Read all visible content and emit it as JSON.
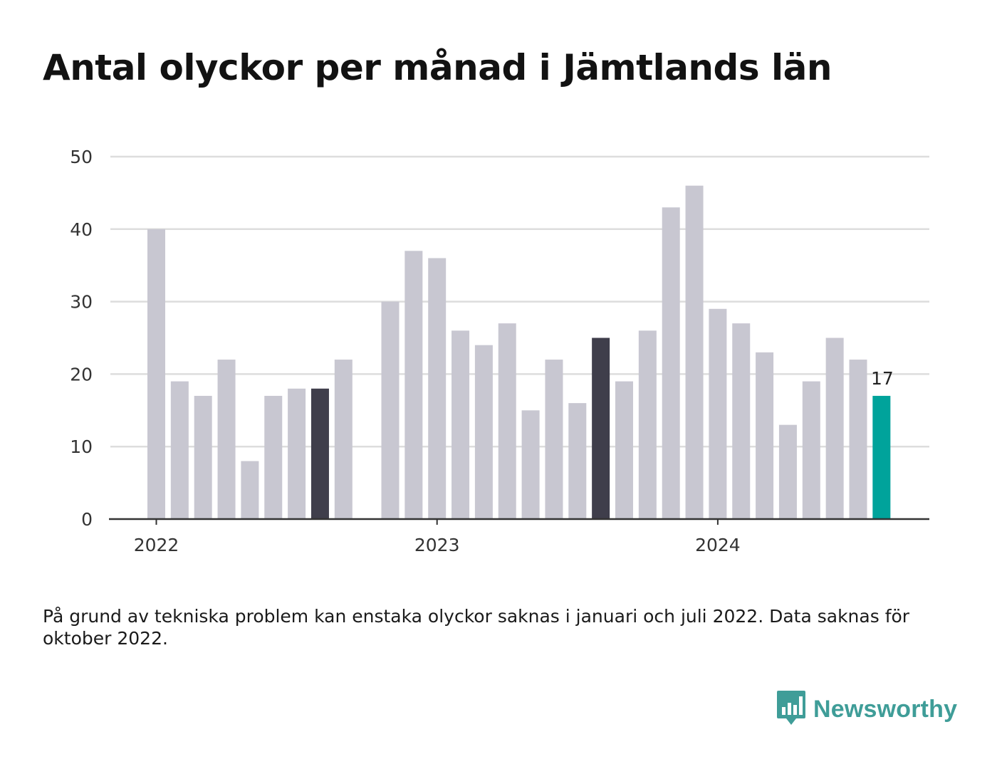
{
  "title": "Antal olyckor per månad i Jämtlands län",
  "footnote": "På grund av tekniska problem kan enstaka olyckor saknas i januari och juli 2022. Data saknas för oktober 2022.",
  "brand": {
    "name": "Newsworthy",
    "icon": "bar-chart-speech-bubble-icon",
    "color": "#3f9d98"
  },
  "colors": {
    "default": "#c8c7d1",
    "highlight": "#3f3e4b",
    "latest": "#00a39b",
    "grid": "#dddddd",
    "axis": "#333333"
  },
  "chart_data": {
    "type": "bar",
    "title": "Antal olyckor per månad i Jämtlands län",
    "xlabel": "",
    "ylabel": "",
    "ylim": [
      0,
      50
    ],
    "yticks": [
      0,
      10,
      20,
      30,
      40,
      50
    ],
    "grid": true,
    "legend": "none",
    "x_tick_labels": [
      {
        "label": "2022",
        "month": "2022-01"
      },
      {
        "label": "2023",
        "month": "2023-01"
      },
      {
        "label": "2024",
        "month": "2024-01"
      }
    ],
    "series": [
      {
        "months": [
          "2022-01",
          "2022-02",
          "2022-03",
          "2022-04",
          "2022-05",
          "2022-06",
          "2022-07",
          "2022-08",
          "2022-09",
          "2022-10",
          "2022-11",
          "2022-12",
          "2023-01",
          "2023-02",
          "2023-03",
          "2023-04",
          "2023-05",
          "2023-06",
          "2023-07",
          "2023-08",
          "2023-09",
          "2023-10",
          "2023-11",
          "2023-12",
          "2024-01",
          "2024-02",
          "2024-03",
          "2024-04",
          "2024-05",
          "2024-06",
          "2024-07",
          "2024-08"
        ],
        "values": [
          40,
          19,
          17,
          22,
          8,
          17,
          18,
          18,
          22,
          null,
          30,
          37,
          36,
          26,
          24,
          27,
          15,
          22,
          16,
          25,
          19,
          26,
          43,
          46,
          29,
          27,
          23,
          13,
          19,
          25,
          22,
          17
        ],
        "highlight": [
          "2022-08",
          "2023-08"
        ],
        "latest": "2024-08"
      }
    ],
    "annotations": [
      {
        "month": "2024-08",
        "text": "17"
      }
    ]
  }
}
